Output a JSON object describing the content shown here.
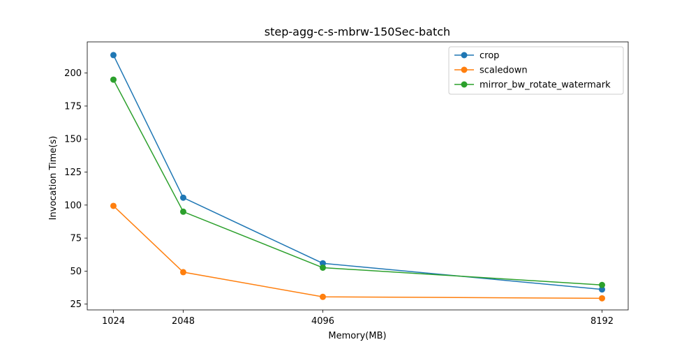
{
  "chart_data": {
    "type": "line",
    "title": "step-agg-c-s-mbrw-150Sec-batch",
    "xlabel": "Memory(MB)",
    "ylabel": "Invocation Time(s)",
    "x": [
      1024,
      2048,
      4096,
      8192
    ],
    "x_ticks": [
      "1024",
      "2048",
      "4096",
      "8192"
    ],
    "xlim": [
      640,
      8576
    ],
    "ylim": [
      20.6,
      223.6
    ],
    "y_ticks": [
      25,
      50,
      75,
      100,
      125,
      150,
      175,
      200
    ],
    "grid": false,
    "legend_position": "top-right",
    "series": [
      {
        "name": "crop",
        "color": "#1f77b4",
        "values": [
          213.6,
          105.6,
          55.9,
          36.1
        ]
      },
      {
        "name": "scaledown",
        "color": "#ff7f0e",
        "values": [
          99.4,
          49.2,
          30.5,
          29.4
        ]
      },
      {
        "name": "mirror_bw_rotate_watermark",
        "color": "#2ca02c",
        "values": [
          195.0,
          95.0,
          52.6,
          39.5
        ]
      }
    ]
  }
}
